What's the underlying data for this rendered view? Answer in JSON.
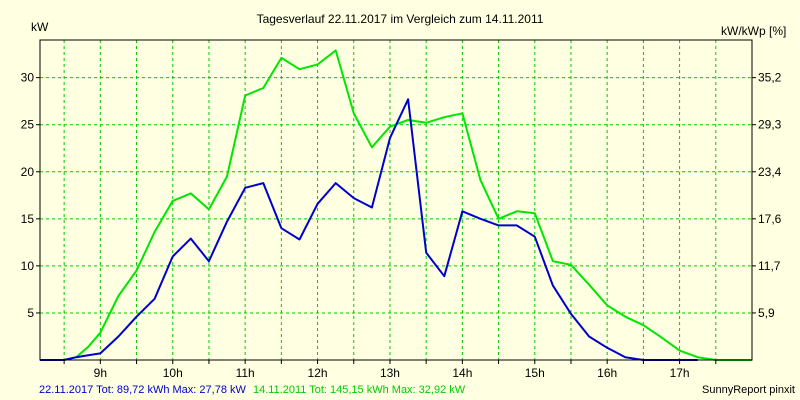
{
  "chart_data": {
    "type": "line",
    "title": "Tagesverlauf 22.11.2017 im Vergleich zum 14.11.2011",
    "ylabel_left": "kW",
    "ylabel_right": "kW/kWp [%]",
    "x_ticks": [
      "9h",
      "10h",
      "11h",
      "12h",
      "13h",
      "14h",
      "15h",
      "16h",
      "17h"
    ],
    "x_range": [
      8.1667,
      18.0
    ],
    "y_range": [
      0,
      34
    ],
    "y_ticks_left": [
      "5",
      "10",
      "15",
      "20",
      "25",
      "30"
    ],
    "y_ticks_right": [
      "5,9",
      "11,7",
      "17,6",
      "23,4",
      "29,3",
      "35,2"
    ],
    "grid": true,
    "series": [
      {
        "name": "22.11.2017",
        "color": "#0000cc",
        "x": [
          8.1667,
          8.5,
          8.6667,
          8.8333,
          9.0,
          9.25,
          9.5,
          9.75,
          10.0,
          10.25,
          10.5,
          10.75,
          11.0,
          11.25,
          11.5,
          11.75,
          12.0,
          12.25,
          12.5,
          12.75,
          13.0,
          13.25,
          13.5,
          13.75,
          14.0,
          14.25,
          14.5,
          14.75,
          15.0,
          15.25,
          15.5,
          15.75,
          16.0,
          16.25,
          16.5,
          16.75,
          17.0,
          17.25
        ],
        "y": [
          0,
          0,
          0.3,
          0.5,
          0.7,
          2.5,
          4.6,
          6.5,
          11.0,
          12.9,
          10.5,
          14.7,
          18.3,
          18.8,
          14.0,
          12.8,
          16.6,
          18.8,
          17.2,
          16.2,
          23.6,
          27.7,
          11.4,
          8.9,
          15.8,
          15.0,
          14.3,
          14.3,
          13.1,
          7.9,
          4.9,
          2.5,
          1.3,
          0.3,
          0,
          0,
          0,
          0
        ]
      },
      {
        "name": "14.11.2011",
        "color": "#00e600",
        "x": [
          8.1667,
          8.5,
          8.6667,
          8.8333,
          9.0,
          9.25,
          9.5,
          9.75,
          10.0,
          10.25,
          10.5,
          10.75,
          11.0,
          11.25,
          11.5,
          11.75,
          12.0,
          12.25,
          12.5,
          12.75,
          13.0,
          13.25,
          13.5,
          13.75,
          14.0,
          14.25,
          14.5,
          14.75,
          15.0,
          15.25,
          15.5,
          15.75,
          16.0,
          16.25,
          16.5,
          16.75,
          17.0,
          17.25,
          17.5,
          17.75,
          18.0
        ],
        "y": [
          0,
          0,
          0.3,
          1.4,
          2.9,
          6.8,
          9.5,
          13.6,
          16.9,
          17.7,
          16.0,
          19.5,
          28.1,
          28.9,
          32.1,
          30.9,
          31.4,
          32.9,
          26.2,
          22.6,
          24.8,
          25.5,
          25.2,
          25.8,
          26.2,
          19.1,
          15.0,
          15.8,
          15.6,
          10.5,
          10.1,
          8.0,
          5.8,
          4.6,
          3.7,
          2.4,
          1.0,
          0.3,
          0,
          0,
          0
        ]
      }
    ]
  },
  "footer": {
    "series1_summary": "22.11.2017 Tot: 89,72 kWh Max: 27,78 kW",
    "series2_summary": "14.11.2011 Tot: 145,15 kWh Max: 32,92 kW",
    "credit": "SunnyReport pinxit"
  },
  "colors": {
    "background": "#ffffe1",
    "grid": "#00cc00",
    "axis": "#000000",
    "series1": "#0000cc",
    "series2": "#00e600"
  }
}
